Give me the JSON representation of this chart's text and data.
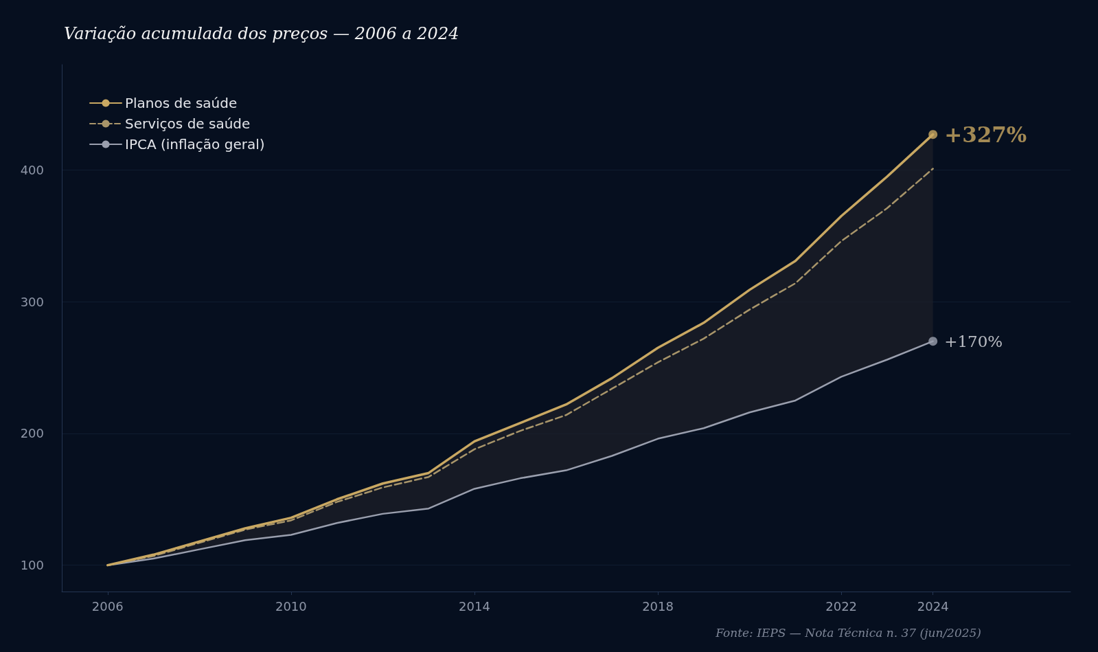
{
  "chart_data": {
    "type": "line",
    "title": "Variação acumulada dos preços — 2006 a 2024",
    "x": [
      2006,
      2007,
      2008,
      2009,
      2010,
      2011,
      2012,
      2013,
      2014,
      2015,
      2016,
      2017,
      2018,
      2019,
      2020,
      2021,
      2022,
      2023,
      2024
    ],
    "series": [
      {
        "name": "Planos de saúde",
        "color": "#c9a862",
        "line_style": "solid",
        "values": [
          100,
          108,
          118,
          128,
          136,
          150,
          162,
          170,
          194,
          208,
          222,
          242,
          265,
          284,
          309,
          331,
          365,
          395,
          427
        ],
        "lower": [
          100,
          105,
          112,
          119,
          123,
          132,
          139,
          143,
          158,
          166,
          172,
          183,
          196,
          204,
          216,
          225,
          243,
          256,
          270
        ],
        "upper": [
          100,
          108,
          118,
          128,
          136,
          150,
          162,
          170,
          194,
          208,
          222,
          242,
          265,
          284,
          309,
          331,
          365,
          395,
          427
        ]
      },
      {
        "name": "Serviços de saúde",
        "color": "#a8956a",
        "line_style": "dashed",
        "values": [
          100,
          107,
          117,
          127,
          134,
          148,
          159,
          167,
          188,
          202,
          214,
          234,
          254,
          272,
          294,
          314,
          346,
          371,
          401
        ]
      },
      {
        "name": "IPCA (inflação geral)",
        "color": "#9a9fae",
        "line_style": "solid",
        "values": [
          100,
          105,
          112,
          119,
          123,
          132,
          139,
          143,
          158,
          166,
          172,
          183,
          196,
          204,
          216,
          225,
          243,
          256,
          270
        ]
      }
    ],
    "xlim": [
      2005,
      2027
    ],
    "xticks": [
      2006,
      2010,
      2014,
      2018,
      2022,
      2024
    ],
    "ylim": [
      80,
      480
    ],
    "yticks": [
      100,
      200,
      300,
      400
    ],
    "grid": "y",
    "legend": "top left",
    "marker": "none",
    "annotations": [
      {
        "text": "+327%",
        "x": 2024,
        "y": 427
      },
      {
        "text": "+170%",
        "x": 2024,
        "y": 270
      },
      "Fonte: IEPS — Nota Técnica n. 37 (jun/2025)"
    ]
  }
}
